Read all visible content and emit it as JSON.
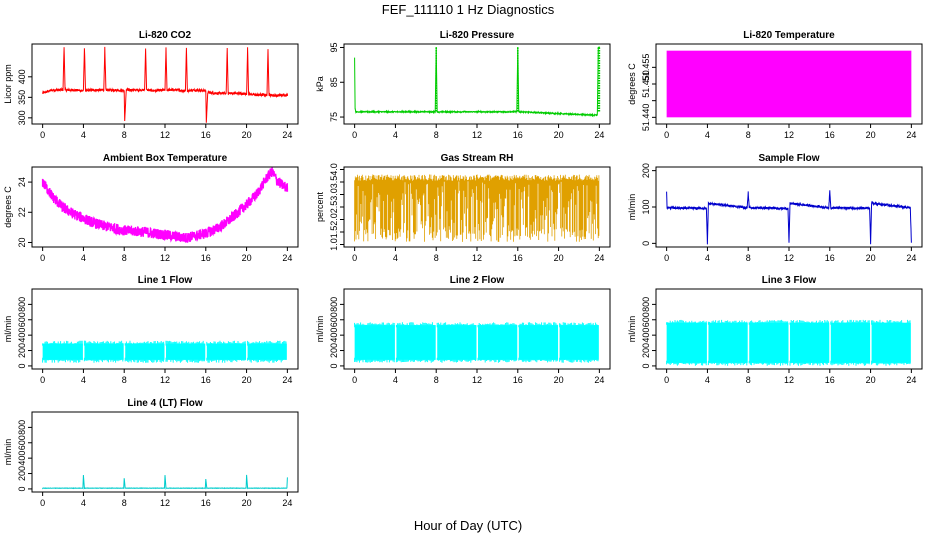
{
  "figure": {
    "title": "FEF_111110  1 Hz Diagnostics",
    "xlabel": "Hour of Day (UTC)"
  },
  "chart_data": [
    {
      "type": "line",
      "title": "Li-820 CO2",
      "ylabel": "Licor ppm",
      "color": "#ff0000",
      "xlim": [
        0,
        24
      ],
      "xticks": [
        0,
        4,
        8,
        12,
        16,
        20,
        24
      ],
      "ylim": [
        285,
        480
      ],
      "yticks": [
        300,
        350,
        400
      ],
      "x": [
        0,
        0.2,
        1,
        2,
        2.1,
        2.2,
        3,
        4,
        4.1,
        4.2,
        5,
        6,
        6.1,
        6.2,
        7,
        8,
        8.05,
        8.2,
        9,
        10,
        10.1,
        10.2,
        11,
        12,
        12.1,
        12.2,
        13,
        14,
        14.1,
        14.2,
        15,
        16,
        16.05,
        16.2,
        17,
        18,
        18.1,
        18.2,
        19,
        20,
        20.1,
        20.2,
        21,
        22,
        22.1,
        22.2,
        23,
        24
      ],
      "values": [
        360,
        362,
        368,
        368,
        470,
        368,
        368,
        366,
        470,
        366,
        368,
        368,
        470,
        368,
        368,
        366,
        290,
        368,
        368,
        368,
        470,
        368,
        366,
        368,
        470,
        368,
        368,
        366,
        470,
        366,
        368,
        366,
        290,
        362,
        360,
        360,
        470,
        360,
        360,
        358,
        470,
        358,
        356,
        356,
        470,
        356,
        354,
        356
      ]
    },
    {
      "type": "line",
      "title": "Li-820 Pressure",
      "ylabel": "kPa",
      "color": "#00cc00",
      "xlim": [
        0,
        24
      ],
      "xticks": [
        0,
        4,
        8,
        12,
        16,
        20,
        24
      ],
      "ylim": [
        73,
        96
      ],
      "yticks": [
        75,
        85,
        95
      ],
      "x": [
        0,
        0.05,
        0.1,
        0.3,
        4,
        7.9,
        8,
        8.1,
        12,
        15.9,
        16,
        16.1,
        20,
        23.8,
        23.9,
        24
      ],
      "values": [
        92,
        77.5,
        76.5,
        76.5,
        76.5,
        76.5,
        95,
        76.5,
        76.5,
        76.5,
        95,
        76.5,
        76,
        75.5,
        95,
        95
      ]
    },
    {
      "type": "area",
      "title": "Li-820 Temperature",
      "ylabel": "degrees C",
      "color": "#ff00ff",
      "xlim": [
        0,
        24
      ],
      "xticks": [
        0,
        4,
        8,
        12,
        16,
        20,
        24
      ],
      "ylim": [
        51.438,
        51.462
      ],
      "yticks": [
        51.44,
        51.445,
        51.45,
        51.455
      ],
      "ytick_labels": [
        "51.440",
        "",
        "51.450",
        "51.455"
      ],
      "x": [
        0,
        24
      ],
      "values": [
        51.44,
        51.46
      ],
      "band": true
    },
    {
      "type": "line",
      "title": "Ambient Box Temperature",
      "ylabel": "degrees C",
      "color": "#ff00ff",
      "xlim": [
        0,
        24
      ],
      "xticks": [
        0,
        4,
        8,
        12,
        16,
        20,
        24
      ],
      "ylim": [
        19.7,
        25
      ],
      "yticks": [
        20,
        22,
        24
      ],
      "x": [
        0,
        1,
        2,
        3,
        4,
        5,
        6,
        8,
        10,
        12,
        14,
        16,
        17,
        18,
        19,
        20,
        21,
        22,
        22.5,
        23,
        23.5,
        24
      ],
      "values": [
        24,
        23,
        22.3,
        21.9,
        21.6,
        21.3,
        21.1,
        20.8,
        20.7,
        20.5,
        20.3,
        20.6,
        20.9,
        21.3,
        21.9,
        22.5,
        23.2,
        24.3,
        24.7,
        24.1,
        23.8,
        23.6
      ]
    },
    {
      "type": "scatter",
      "title": "Gas Stream RH",
      "ylabel": "percent",
      "color": "#e0a000",
      "xlim": [
        0,
        24
      ],
      "xticks": [
        0,
        4,
        8,
        12,
        16,
        20,
        24
      ],
      "ylim": [
        0.9,
        4.1
      ],
      "yticks": [
        1,
        1.5,
        2,
        2.5,
        3,
        3.5,
        4
      ],
      "ytick_labels": [
        "1.0",
        "1.5",
        "2.0",
        "2.5",
        "3.0",
        "3.5",
        "4.0"
      ],
      "x": [
        0,
        24
      ],
      "values": [
        1.1,
        3.8
      ],
      "band": true
    },
    {
      "type": "line",
      "title": "Sample Flow",
      "ylabel": "ml/min",
      "color": "#0000cc",
      "xlim": [
        0,
        24
      ],
      "xticks": [
        0,
        4,
        8,
        12,
        16,
        20,
        24
      ],
      "ylim": [
        -10,
        210
      ],
      "yticks": [
        0,
        100,
        200
      ],
      "x": [
        0,
        0.05,
        0.2,
        3.9,
        4,
        4.1,
        7.9,
        8,
        8.1,
        11.9,
        12,
        12.1,
        15.9,
        16,
        16.1,
        19.9,
        20,
        20.1,
        23.9,
        24
      ],
      "values": [
        140,
        98,
        98,
        96,
        0,
        110,
        98,
        140,
        98,
        96,
        0,
        110,
        98,
        145,
        98,
        96,
        0,
        110,
        98,
        0
      ]
    },
    {
      "type": "area",
      "title": "Line 1 Flow",
      "ylabel": "ml/min",
      "color": "#00ffff",
      "xlim": [
        0,
        24
      ],
      "xticks": [
        0,
        4,
        8,
        12,
        16,
        20,
        24
      ],
      "ylim": [
        -40,
        1000
      ],
      "yticks": [
        0,
        200,
        400,
        600,
        800
      ],
      "x": [
        0,
        24
      ],
      "values": [
        80,
        290
      ],
      "band": true
    },
    {
      "type": "area",
      "title": "Line 2 Flow",
      "ylabel": "ml/min",
      "color": "#00ffff",
      "xlim": [
        0,
        24
      ],
      "xticks": [
        0,
        4,
        8,
        12,
        16,
        20,
        24
      ],
      "ylim": [
        -40,
        1000
      ],
      "yticks": [
        0,
        200,
        400,
        600,
        800
      ],
      "x": [
        0,
        24
      ],
      "values": [
        80,
        530
      ],
      "band": true
    },
    {
      "type": "area",
      "title": "Line 3 Flow",
      "ylabel": "ml/min",
      "color": "#00ffff",
      "xlim": [
        0,
        24
      ],
      "xticks": [
        0,
        4,
        8,
        12,
        16,
        20,
        24
      ],
      "ylim": [
        -40,
        1000
      ],
      "yticks": [
        0,
        200,
        400,
        600,
        800
      ],
      "x": [
        0,
        24
      ],
      "values": [
        40,
        560
      ],
      "band": true
    },
    {
      "type": "line",
      "title": "Line 4 (LT) Flow",
      "ylabel": "ml/min",
      "color": "#00cccc",
      "xlim": [
        0,
        24
      ],
      "xticks": [
        0,
        4,
        8,
        12,
        16,
        20,
        24
      ],
      "ylim": [
        -40,
        1000
      ],
      "yticks": [
        0,
        200,
        400,
        600,
        800
      ],
      "x": [
        0,
        3.95,
        4,
        4.1,
        7.95,
        8,
        8.1,
        11.95,
        12,
        12.1,
        15.95,
        16,
        16.1,
        19.95,
        20,
        20.1,
        23.95,
        24
      ],
      "values": [
        10,
        10,
        180,
        10,
        10,
        140,
        10,
        10,
        180,
        10,
        10,
        130,
        10,
        10,
        180,
        10,
        10,
        150
      ]
    }
  ]
}
